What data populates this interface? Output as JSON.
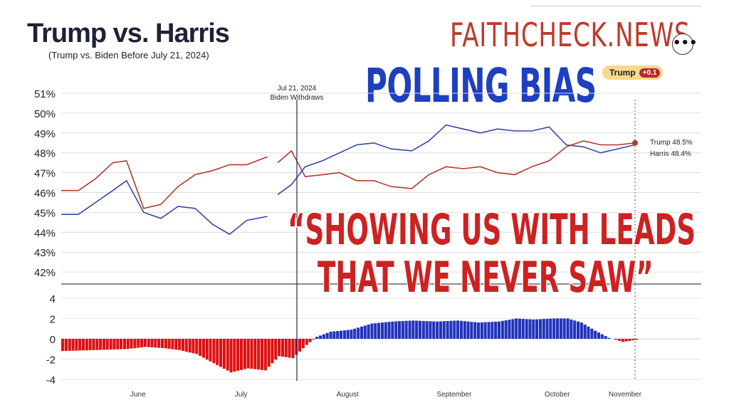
{
  "header": {
    "title": "Trump vs. Harris",
    "subtitle": "(Trump vs. Biden Before July 21, 2024)",
    "brand": "FAITHCHECK.NEWS",
    "banner": "POLLING BIAS",
    "more_button": "•••"
  },
  "lead_badge": {
    "name": "Trump",
    "value": "+0.1"
  },
  "overlay_quote": {
    "line1": "“SHOWING US WITH LEADS",
    "line2": "THAT WE NEVER SAW”"
  },
  "event": {
    "date": "Jul 21, 2024",
    "label": "Biden Withdraws"
  },
  "colors": {
    "trump": "#b03a2e",
    "harris": "#3547a8",
    "bar_positive": "#2233bb",
    "bar_negative": "#dd1111",
    "brand": "#c0392b",
    "banner": "#1e3fbf"
  },
  "chart_data": [
    {
      "type": "line",
      "title": "Trump vs. Harris",
      "subtitle": "(Trump vs. Biden Before July 21, 2024)",
      "y_ticks": [
        "51%",
        "50%",
        "49%",
        "48%",
        "47%",
        "46%",
        "45%",
        "44%",
        "43%",
        "42%"
      ],
      "ylim": [
        41,
        51
      ],
      "x_ticks": [
        "June",
        "July",
        "August",
        "September",
        "October",
        "November"
      ],
      "grid": true,
      "series": [
        {
          "name": "Trump",
          "end_label": "Trump 48.5%",
          "x": [
            "May 22",
            "May 27",
            "Jun 1",
            "Jun 6",
            "Jun 10",
            "Jun 15",
            "Jun 20",
            "Jun 25",
            "Jun 30",
            "Jul 5",
            "Jul 10",
            "Jul 15",
            "Jul 21",
            "Jul 24",
            "Jul 28",
            "Aug 1",
            "Aug 6",
            "Aug 11",
            "Aug 16",
            "Aug 21",
            "Aug 26",
            "Sep 1",
            "Sep 6",
            "Sep 11",
            "Sep 16",
            "Sep 21",
            "Sep 26",
            "Oct 1",
            "Oct 6",
            "Oct 11",
            "Oct 16",
            "Oct 21",
            "Oct 26",
            "Oct 31",
            "Nov 5"
          ],
          "values": [
            46.1,
            46.1,
            46.7,
            47.5,
            47.6,
            45.2,
            45.4,
            46.3,
            46.9,
            47.1,
            47.4,
            47.4,
            47.8,
            47.5,
            48.1,
            46.8,
            46.9,
            47.0,
            46.6,
            46.6,
            46.3,
            46.2,
            46.9,
            47.3,
            47.2,
            47.3,
            47.0,
            46.9,
            47.3,
            47.6,
            48.3,
            48.6,
            48.4,
            48.4,
            48.5
          ]
        },
        {
          "name": "Harris",
          "end_label": "Harris 48.4%",
          "x": [
            "May 22",
            "May 27",
            "Jun 1",
            "Jun 6",
            "Jun 10",
            "Jun 15",
            "Jun 20",
            "Jun 25",
            "Jun 30",
            "Jul 5",
            "Jul 10",
            "Jul 15",
            "Jul 21",
            "Jul 24",
            "Jul 28",
            "Aug 1",
            "Aug 6",
            "Aug 11",
            "Aug 16",
            "Aug 21",
            "Aug 26",
            "Sep 1",
            "Sep 6",
            "Sep 11",
            "Sep 16",
            "Sep 21",
            "Sep 26",
            "Oct 1",
            "Oct 6",
            "Oct 11",
            "Oct 16",
            "Oct 21",
            "Oct 26",
            "Oct 31",
            "Nov 5"
          ],
          "values": [
            44.9,
            44.9,
            45.5,
            46.1,
            46.6,
            45.0,
            44.7,
            45.3,
            45.2,
            44.4,
            43.9,
            44.6,
            44.8,
            45.9,
            46.4,
            47.3,
            47.6,
            48.0,
            48.4,
            48.5,
            48.2,
            48.1,
            48.6,
            49.4,
            49.2,
            49.0,
            49.2,
            49.1,
            49.1,
            49.3,
            48.4,
            48.3,
            48.0,
            48.2,
            48.4
          ]
        }
      ]
    },
    {
      "type": "bar",
      "y_ticks": [
        "4",
        "2",
        "0",
        "-2",
        "-4"
      ],
      "ylim": [
        -4,
        4
      ],
      "x_ticks": [
        "June",
        "July",
        "August",
        "September",
        "October",
        "November"
      ],
      "series": [
        {
          "name": "Spread",
          "points": [
            [
              "May 22",
              -1.2
            ],
            [
              "Jun 1",
              -1.1
            ],
            [
              "Jun 10",
              -1.0
            ],
            [
              "Jun 15",
              -0.8
            ],
            [
              "Jun 20",
              -0.9
            ],
            [
              "Jun 25",
              -1.1
            ],
            [
              "Jun 30",
              -1.5
            ],
            [
              "Jul 5",
              -2.4
            ],
            [
              "Jul 10",
              -3.3
            ],
            [
              "Jul 15",
              -2.9
            ],
            [
              "Jul 20",
              -3.1
            ],
            [
              "Jul 24",
              -1.7
            ],
            [
              "Jul 28",
              -1.9
            ],
            [
              "Aug 1",
              -0.6
            ],
            [
              "Aug 4",
              0.2
            ],
            [
              "Aug 8",
              0.7
            ],
            [
              "Aug 14",
              0.9
            ],
            [
              "Aug 20",
              1.5
            ],
            [
              "Aug 26",
              1.7
            ],
            [
              "Sep 1",
              1.8
            ],
            [
              "Sep 8",
              1.7
            ],
            [
              "Sep 14",
              1.8
            ],
            [
              "Sep 20",
              1.6
            ],
            [
              "Sep 26",
              1.7
            ],
            [
              "Oct 1",
              2.0
            ],
            [
              "Oct 6",
              1.9
            ],
            [
              "Oct 12",
              2.0
            ],
            [
              "Oct 16",
              2.0
            ],
            [
              "Oct 20",
              1.6
            ],
            [
              "Oct 24",
              0.8
            ],
            [
              "Oct 28",
              0.1
            ],
            [
              "Nov 1",
              -0.3
            ],
            [
              "Nov 5",
              -0.1
            ]
          ]
        }
      ]
    }
  ]
}
